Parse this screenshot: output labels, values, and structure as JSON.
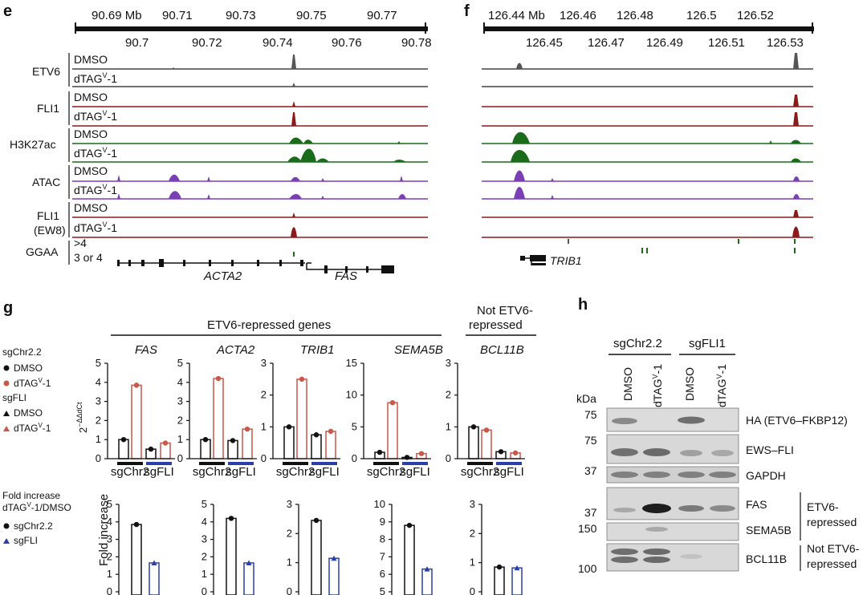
{
  "panels": {
    "e": "e",
    "f": "f",
    "g": "g",
    "h": "h"
  },
  "colors": {
    "black": "#444444",
    "red": "#8b1a1a",
    "green": "#1a6b1a",
    "purple": "#7b3fb5",
    "sgchr": "#111111",
    "sgfli": "#2b3fa8",
    "dtag": "#c9574a"
  },
  "panel_e": {
    "coord_top": [
      "90.69 Mb",
      "90.71",
      "90.73",
      "90.75",
      "90.77"
    ],
    "coord_bottom": [
      "90.7",
      "90.72",
      "90.74",
      "90.76",
      "90.78"
    ],
    "groups": [
      "ETV6",
      "FLI1",
      "H3K27ac",
      "ATAC",
      "FLI1",
      "(EW8)",
      "GGAA"
    ],
    "dmso": "DMSO",
    "dtag": "dTAG",
    "dtag_sup": "V",
    "dtag_suffix": "-1",
    "ggaa_gt4": ">4",
    "ggaa_3or4": "3 or 4",
    "gene1": "ACTA2",
    "gene2": "FAS"
  },
  "panel_f": {
    "coord_top": [
      "126.44 Mb",
      "126.46",
      "126.48",
      "126.5",
      "126.52"
    ],
    "coord_bottom": [
      "126.45",
      "126.47",
      "126.49",
      "126.51",
      "126.53"
    ],
    "gene": "TRIB1"
  },
  "panel_g": {
    "header_repressed": "ETV6-repressed genes",
    "header_not_l1": "Not ETV6-",
    "header_not_l2": "repressed",
    "legend1": {
      "title": "sgChr2.2",
      "dmso": "DMSO",
      "dtag": "dTAG",
      "dtag_sup": "V",
      "dtag_suffix": "-1"
    },
    "legend2": {
      "title": "sgFLI",
      "dmso": "DMSO",
      "dtag": "dTAG",
      "dtag_sup": "V",
      "dtag_suffix": "-1"
    },
    "legend3": {
      "title_l1": "Fold increase",
      "title_l2": "dTAG",
      "title_sup": "V",
      "title_suffix": "-1/DMSO",
      "s1": "sgChr2.2",
      "s2": "sgFLI"
    },
    "ylabel_top": "2",
    "ylabel_top_sup": "−ΔΔdCt",
    "ylabel_bottom": "Fold increase",
    "xlab_chr": "sgChr2",
    "xlab_fli": "sgFLI",
    "genes": [
      "FAS",
      "ACTA2",
      "TRIB1",
      "SEMA5B",
      "BCL11B"
    ]
  },
  "chart_data": [
    {
      "type": "bar",
      "title": "FAS",
      "ylim": [
        0,
        5
      ],
      "yticks": [
        "0",
        "1",
        "2",
        "3",
        "4",
        "5"
      ],
      "categories": [
        "sgChr2 DMSO",
        "sgChr2 dTAGV-1",
        "sgFLI DMSO",
        "sgFLI dTAGV-1"
      ],
      "values": [
        1.0,
        3.85,
        0.5,
        0.82
      ]
    },
    {
      "type": "bar",
      "title": "ACTA2",
      "ylim": [
        0,
        5
      ],
      "yticks": [
        "0",
        "1",
        "2",
        "3",
        "4",
        "5"
      ],
      "categories": [
        "sgChr2 DMSO",
        "sgChr2 dTAGV-1",
        "sgFLI DMSO",
        "sgFLI dTAGV-1"
      ],
      "values": [
        1.0,
        4.2,
        0.95,
        1.55
      ]
    },
    {
      "type": "bar",
      "title": "TRIB1",
      "ylim": [
        0,
        3
      ],
      "yticks": [
        "0",
        "1",
        "2",
        "3"
      ],
      "categories": [
        "sgChr2 DMSO",
        "sgChr2 dTAGV-1",
        "sgFLI DMSO",
        "sgFLI dTAGV-1"
      ],
      "values": [
        1.0,
        2.5,
        0.75,
        0.86
      ]
    },
    {
      "type": "bar",
      "title": "SEMA5B",
      "ylim": [
        0,
        15
      ],
      "yticks": [
        "0",
        "5",
        "10",
        "15"
      ],
      "categories": [
        "sgChr2 DMSO",
        "sgChr2 dTAGV-1",
        "sgFLI DMSO",
        "sgFLI dTAGV-1"
      ],
      "values": [
        1.0,
        8.8,
        0.2,
        0.8
      ]
    },
    {
      "type": "bar",
      "title": "BCL11B",
      "ylim": [
        0,
        3
      ],
      "yticks": [
        "0",
        "1",
        "2",
        "3"
      ],
      "categories": [
        "sgChr2 DMSO",
        "sgChr2 dTAGV-1",
        "sgFLI DMSO",
        "sgFLI dTAGV-1"
      ],
      "values": [
        1.0,
        0.9,
        0.22,
        0.18
      ]
    },
    {
      "type": "bar",
      "title": "FAS fold increase",
      "ylim": [
        0,
        5
      ],
      "yticks": [
        "0",
        "1",
        "2",
        "3",
        "4",
        "5"
      ],
      "categories": [
        "sgChr2.2",
        "sgFLI"
      ],
      "values": [
        3.85,
        1.65
      ]
    },
    {
      "type": "bar",
      "title": "ACTA2 fold increase",
      "ylim": [
        0,
        5
      ],
      "yticks": [
        "0",
        "1",
        "2",
        "3",
        "4",
        "5"
      ],
      "categories": [
        "sgChr2.2",
        "sgFLI"
      ],
      "values": [
        4.2,
        1.65
      ]
    },
    {
      "type": "bar",
      "title": "TRIB1 fold increase",
      "ylim": [
        0,
        3
      ],
      "yticks": [
        "0",
        "1",
        "2",
        "3"
      ],
      "categories": [
        "sgChr2.2",
        "sgFLI"
      ],
      "values": [
        2.45,
        1.15
      ]
    },
    {
      "type": "bar",
      "title": "SEMA5B fold increase",
      "ylim": [
        5,
        10
      ],
      "yticks": [
        "5",
        "6",
        "7",
        "8",
        "9",
        "10"
      ],
      "categories": [
        "sgChr2.2",
        "sgFLI"
      ],
      "values": [
        8.8,
        6.3
      ]
    },
    {
      "type": "bar",
      "title": "BCL11B fold increase",
      "ylim": [
        0,
        3
      ],
      "yticks": [
        "0",
        "1",
        "2",
        "3"
      ],
      "categories": [
        "sgChr2.2",
        "sgFLI"
      ],
      "values": [
        0.85,
        0.82
      ]
    }
  ],
  "panel_h": {
    "group1": "sgChr2.2",
    "group2": "sgFLI1",
    "lanes": [
      "DMSO",
      "dTAG",
      "DMSO",
      "dTAG"
    ],
    "lane_sup": "V",
    "lane_suffix": "-1",
    "kda": "kDa",
    "markers": [
      "75",
      "75",
      "37",
      "37",
      "150",
      "100"
    ],
    "bands": [
      "HA (ETV6–FKBP12)",
      "EWS–FLI",
      "GAPDH",
      "FAS",
      "SEMA5B",
      "BCL11B"
    ],
    "bracket1_l1": "ETV6-",
    "bracket1_l2": "repressed",
    "bracket2_l1": "Not ETV6-",
    "bracket2_l2": "repressed"
  }
}
